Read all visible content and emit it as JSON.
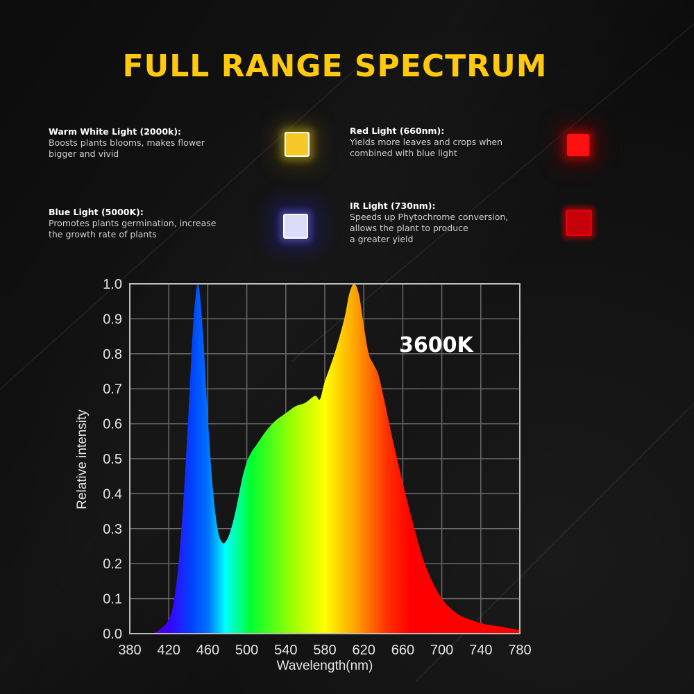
{
  "page": {
    "title": "FULL RANGE SPECTRUM",
    "colors": {
      "title": "#ffc90e",
      "background": "#0d0d0d"
    }
  },
  "features": [
    {
      "title": "Warm White Light (2000k):",
      "lines": [
        "Boosts plants blooms, makes flower",
        "bigger and vivid"
      ],
      "icon": "warm-white-led-icon",
      "color": "#f7c928"
    },
    {
      "title": "Red Light (660nm):",
      "lines": [
        "Yields more leaves and crops when",
        "combined with blue light"
      ],
      "icon": "red-led-icon",
      "color": "#ff1010"
    },
    {
      "title": "Blue Light (5000K):",
      "lines": [
        "Promotes plants germination, increase",
        "the growth rate of plants"
      ],
      "icon": "blue-led-icon",
      "color": "#dcdcf8"
    },
    {
      "title": "IR Light (730nm):",
      "lines": [
        "Speeds up Phytochrome conversion,",
        "allows the plant to produce",
        "a greater yield"
      ],
      "icon": "ir-led-icon",
      "color": "#c40008"
    }
  ],
  "chart_data": {
    "type": "area",
    "title": "",
    "annotation": "3600K",
    "xlabel": "Wavelength(nm)",
    "ylabel": "Relative intensity",
    "xlim": [
      380,
      780
    ],
    "ylim": [
      0.0,
      1.0
    ],
    "grid": true,
    "x_ticks": [
      "380",
      "420",
      "460",
      "500",
      "540",
      "580",
      "620",
      "660",
      "700",
      "740",
      "780"
    ],
    "y_ticks": [
      "0.0",
      "0.1",
      "0.2",
      "0.3",
      "0.4",
      "0.5",
      "0.6",
      "0.7",
      "0.8",
      "0.9",
      "1.0"
    ],
    "x": [
      380,
      400,
      410,
      420,
      425,
      430,
      435,
      440,
      445,
      450,
      455,
      460,
      465,
      470,
      475,
      480,
      485,
      490,
      495,
      500,
      505,
      510,
      520,
      530,
      540,
      550,
      560,
      570,
      575,
      580,
      590,
      600,
      605,
      610,
      615,
      620,
      625,
      630,
      635,
      640,
      650,
      660,
      670,
      680,
      690,
      700,
      710,
      720,
      740,
      760,
      780
    ],
    "values": [
      0.0,
      0.0,
      0.01,
      0.04,
      0.09,
      0.2,
      0.38,
      0.62,
      0.88,
      1.0,
      0.86,
      0.62,
      0.42,
      0.3,
      0.26,
      0.27,
      0.31,
      0.37,
      0.44,
      0.49,
      0.52,
      0.54,
      0.58,
      0.61,
      0.63,
      0.65,
      0.66,
      0.68,
      0.67,
      0.72,
      0.8,
      0.9,
      0.97,
      1.0,
      0.97,
      0.88,
      0.8,
      0.77,
      0.74,
      0.68,
      0.55,
      0.43,
      0.32,
      0.22,
      0.15,
      0.1,
      0.07,
      0.05,
      0.03,
      0.02,
      0.01
    ],
    "series_color": "visible-spectrum gradient"
  }
}
